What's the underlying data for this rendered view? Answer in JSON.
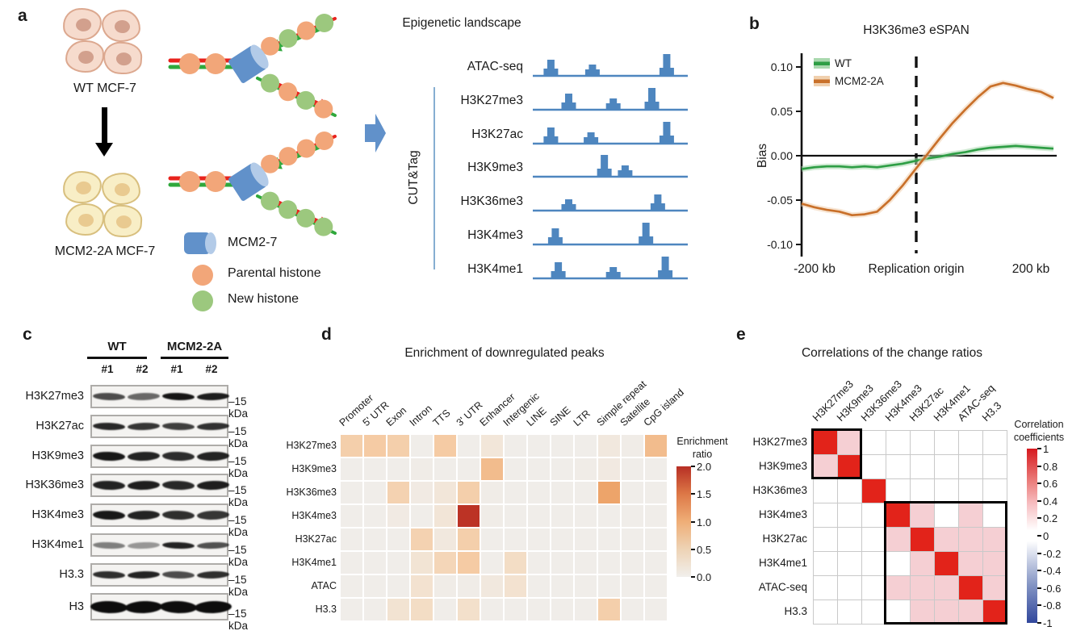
{
  "panel_labels": {
    "a": "a",
    "b": "b",
    "c": "c",
    "d": "d",
    "e": "e"
  },
  "panel_a": {
    "wt_label": "WT MCF-7",
    "mutant_label": "MCM2-2A MCF-7",
    "legend": [
      {
        "icon": "mcm2-7-cylinder-icon",
        "label": "MCM2-7"
      },
      {
        "icon": "parental-histone-icon",
        "label": "Parental histone"
      },
      {
        "icon": "new-histone-icon",
        "label": "New histone"
      }
    ],
    "forks": [
      {
        "id": "wt",
        "upper": [
          "parental",
          "new",
          "parental",
          "new"
        ],
        "lower": [
          "new",
          "parental",
          "new",
          "parental"
        ]
      },
      {
        "id": "mcm2-2a",
        "upper": [
          "parental",
          "parental",
          "parental",
          "parental"
        ],
        "lower": [
          "new",
          "new",
          "new",
          "new"
        ]
      }
    ],
    "colors": {
      "dna_red": "#e8231d",
      "dna_green": "#2fa83c",
      "mcm_blue": "#6191ca",
      "mcm_cap": "#b3cbe8",
      "parental": "#f2a679",
      "new": "#9cc87e",
      "wt_cell_fill": "#f6dbcd",
      "wt_cell_border": "#dca88f",
      "wt_nucleus": "#d2a08d",
      "mut_cell_fill": "#f8eec6",
      "mut_cell_border": "#d8bf7e",
      "mut_nucleus": "#e9ca90",
      "big_arrow_blue": "#6191ca"
    },
    "landscape": {
      "title": "Epigenetic landscape",
      "method": "CUT&Tag",
      "track_color": "#4e86bf",
      "tracks": [
        {
          "name": "ATAC-seq",
          "peaks": [
            [
              0.1,
              "m"
            ],
            [
              0.38,
              "s"
            ],
            [
              0.88,
              "l"
            ]
          ]
        },
        {
          "name": "H3K27me3",
          "peaks": [
            [
              0.22,
              "m"
            ],
            [
              0.52,
              "s"
            ],
            [
              0.78,
              "l"
            ]
          ]
        },
        {
          "name": "H3K27ac",
          "peaks": [
            [
              0.1,
              "m"
            ],
            [
              0.37,
              "s"
            ],
            [
              0.88,
              "l"
            ]
          ]
        },
        {
          "name": "H3K9me3",
          "peaks": [
            [
              0.46,
              "l"
            ],
            [
              0.6,
              "s"
            ]
          ]
        },
        {
          "name": "H3K36me3",
          "peaks": [
            [
              0.22,
              "s"
            ],
            [
              0.82,
              "m"
            ]
          ]
        },
        {
          "name": "H3K4me3",
          "peaks": [
            [
              0.13,
              "m"
            ],
            [
              0.74,
              "l"
            ]
          ]
        },
        {
          "name": "H3K4me1",
          "peaks": [
            [
              0.15,
              "m"
            ],
            [
              0.52,
              "s"
            ],
            [
              0.87,
              "l"
            ]
          ]
        }
      ]
    }
  },
  "panel_c": {
    "groups": [
      {
        "name": "WT",
        "lanes": [
          "#1",
          "#2"
        ]
      },
      {
        "name": "MCM2-2A",
        "lanes": [
          "#1",
          "#2"
        ]
      }
    ],
    "marker": "–15 kDa",
    "rows": [
      {
        "name": "H3K27me3",
        "bands": [
          0.72,
          0.6,
          0.96,
          0.93
        ],
        "thickness": 9
      },
      {
        "name": "H3K27ac",
        "bands": [
          0.88,
          0.82,
          0.78,
          0.84
        ],
        "thickness": 9
      },
      {
        "name": "H3K9me3",
        "bands": [
          0.95,
          0.9,
          0.86,
          0.9
        ],
        "thickness": 11
      },
      {
        "name": "H3K36me3",
        "bands": [
          0.9,
          0.92,
          0.88,
          0.92
        ],
        "thickness": 11
      },
      {
        "name": "H3K4me3",
        "bands": [
          0.95,
          0.9,
          0.85,
          0.82
        ],
        "thickness": 11
      },
      {
        "name": "H3K4me1",
        "bands": [
          0.5,
          0.4,
          0.9,
          0.7
        ],
        "thickness": 8
      },
      {
        "name": "H3.3",
        "bands": [
          0.85,
          0.9,
          0.72,
          0.85
        ],
        "thickness": 9
      },
      {
        "name": "H3",
        "bands": [
          1.0,
          1.0,
          1.0,
          1.0
        ],
        "thickness": 15
      }
    ]
  },
  "chart_data": [
    {
      "id": "espan",
      "type": "line",
      "title": "H3K36me3 eSPAN",
      "ylabel": "Bias",
      "x_axis_labels": [
        "-200 kb",
        "Replication origin",
        "200 kb"
      ],
      "ylim": [
        -0.1,
        0.1
      ],
      "ytick_labels": [
        "0.10",
        "0.05",
        "0.00",
        "-0.05",
        "-0.10"
      ],
      "yticks": [
        0.1,
        0.05,
        0.0,
        -0.05,
        -0.1
      ],
      "x_kb": [
        -200,
        -180,
        -160,
        -140,
        -120,
        -100,
        -80,
        -60,
        -40,
        -20,
        0,
        20,
        40,
        60,
        80,
        100,
        120,
        140,
        160,
        180,
        200
      ],
      "series": [
        {
          "name": "WT",
          "color": "#2e9e45",
          "band_color": "#a9d8ae",
          "values": [
            -0.015,
            -0.013,
            -0.012,
            -0.012,
            -0.013,
            -0.012,
            -0.013,
            -0.011,
            -0.009,
            -0.006,
            -0.003,
            -0.001,
            0.002,
            0.004,
            0.007,
            0.009,
            0.01,
            0.011,
            0.01,
            0.009,
            0.008
          ]
        },
        {
          "name": "MCM2-2A",
          "color": "#c9702a",
          "band_color": "#f0d0ae",
          "values": [
            -0.054,
            -0.058,
            -0.061,
            -0.063,
            -0.067,
            -0.066,
            -0.063,
            -0.05,
            -0.034,
            -0.016,
            0.002,
            0.02,
            0.037,
            0.052,
            0.066,
            0.078,
            0.082,
            0.079,
            0.075,
            0.072,
            0.065
          ]
        }
      ],
      "legend_position": "top-left",
      "origin_line": "dashed"
    },
    {
      "id": "enrichment",
      "type": "heatmap",
      "title": "Enrichment of downregulated peaks",
      "columns": [
        "Promoter",
        "5' UTR",
        "Exon",
        "Intron",
        "TTS",
        "3' UTR",
        "Enhancer",
        "Intergenic",
        "LINE",
        "SINE",
        "LTR",
        "Simple repeat",
        "Satellite",
        "CpG island"
      ],
      "rows": [
        "H3K27me3",
        "H3K9me3",
        "H3K36me3",
        "H3K4me3",
        "H3K27ac",
        "H3K4me1",
        "ATAC",
        "H3.3"
      ],
      "values": [
        [
          0.6,
          0.65,
          0.6,
          0.03,
          0.65,
          0.03,
          0.2,
          0.03,
          0.03,
          0.03,
          0.03,
          0.15,
          0.05,
          0.8
        ],
        [
          0.03,
          0.03,
          0.03,
          0.05,
          0.03,
          0.03,
          0.8,
          0.03,
          0.03,
          0.03,
          0.05,
          0.12,
          0.03,
          0.03
        ],
        [
          0.03,
          0.03,
          0.55,
          0.1,
          0.2,
          0.6,
          0.05,
          0.03,
          0.03,
          0.03,
          0.03,
          1.0,
          0.03,
          0.03
        ],
        [
          0.03,
          0.03,
          0.1,
          0.03,
          0.22,
          1.95,
          0.05,
          0.03,
          0.03,
          0.03,
          0.03,
          0.03,
          0.03,
          0.03
        ],
        [
          0.03,
          0.03,
          0.03,
          0.55,
          0.15,
          0.6,
          0.03,
          0.03,
          0.03,
          0.03,
          0.03,
          0.03,
          0.03,
          0.03
        ],
        [
          0.03,
          0.03,
          0.03,
          0.25,
          0.5,
          0.65,
          0.03,
          0.4,
          0.03,
          0.03,
          0.03,
          0.03,
          0.03,
          0.03
        ],
        [
          0.03,
          0.03,
          0.03,
          0.3,
          0.05,
          0.05,
          0.15,
          0.3,
          0.03,
          0.03,
          0.03,
          0.03,
          0.03,
          0.03
        ],
        [
          0.03,
          0.03,
          0.28,
          0.4,
          0.03,
          0.35,
          0.03,
          0.03,
          0.03,
          0.03,
          0.03,
          0.6,
          0.03,
          0.03
        ]
      ],
      "colorbar": {
        "title": "Enrichment ratio",
        "ticks": [
          "2.0",
          "1.5",
          "1.0",
          "0.5",
          "0.0"
        ],
        "range": [
          0,
          2
        ]
      }
    },
    {
      "id": "correlation",
      "type": "heatmap",
      "title": "Correlations of the change ratios",
      "labels": [
        "H3K27me3",
        "H3K9me3",
        "H3K36me3",
        "H3K4me3",
        "H3K27ac",
        "H3K4me1",
        "ATAC-seq",
        "H3.3"
      ],
      "values": [
        [
          1,
          0.3,
          0,
          0,
          0,
          0,
          0,
          0
        ],
        [
          0.3,
          1,
          0,
          0,
          0,
          0,
          0,
          0
        ],
        [
          0,
          0,
          1,
          0,
          0,
          0,
          0,
          0
        ],
        [
          0,
          0,
          0,
          1,
          0.3,
          0,
          0.3,
          0
        ],
        [
          0,
          0,
          0,
          0.3,
          1,
          0.3,
          0.3,
          0.3
        ],
        [
          0,
          0,
          0,
          0,
          0.3,
          1,
          0.3,
          0.3
        ],
        [
          0,
          0,
          0,
          0.3,
          0.3,
          0.3,
          1,
          0.3
        ],
        [
          0,
          0,
          0,
          0,
          0.3,
          0.3,
          0.3,
          1
        ]
      ],
      "clusters": [
        {
          "r0": 0,
          "c0": 0,
          "r1": 1,
          "c1": 1
        },
        {
          "r0": 3,
          "c0": 3,
          "r1": 7,
          "c1": 7
        }
      ],
      "colorbar": {
        "title": "Correlation coefficients",
        "ticks": [
          "1",
          "0.8",
          "0.6",
          "0.4",
          "0.2",
          "0",
          "-0.2",
          "-0.4",
          "-0.6",
          "-0.8",
          "-1"
        ],
        "range": [
          -1,
          1
        ]
      }
    }
  ]
}
